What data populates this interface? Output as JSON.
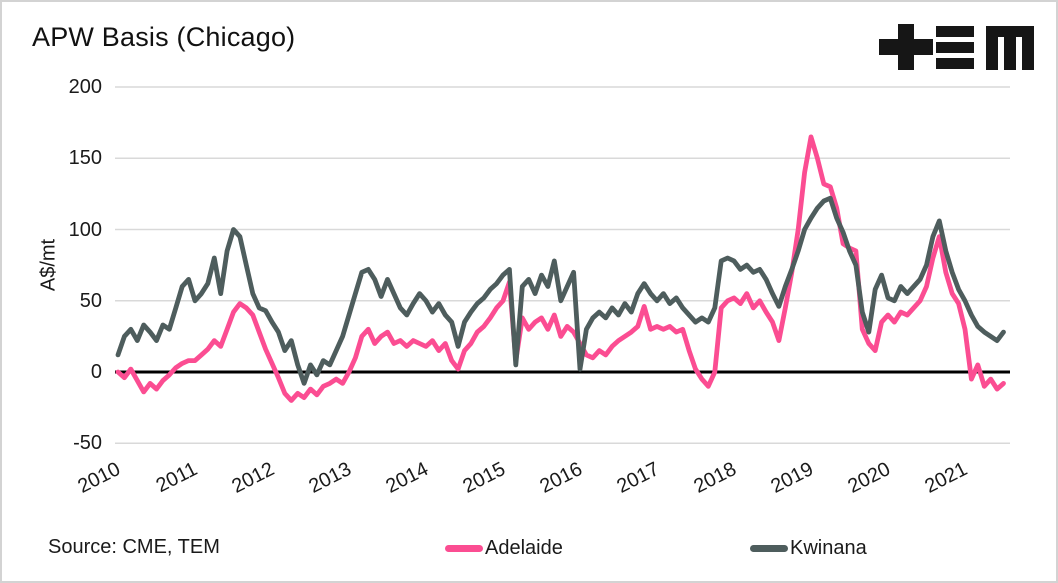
{
  "header": {
    "title": "APW Basis (Chicago)",
    "logo_name": "TEM"
  },
  "footer": {
    "source": "Source: CME, TEM"
  },
  "colors": {
    "adelaide": "#fb4d92",
    "kwinana": "#4e5d5d",
    "gridline": "#d9d9d9",
    "zero_line": "#000000",
    "text": "#1a1a1a",
    "border": "#d3d3d3"
  },
  "chart_data": {
    "type": "line",
    "title": "APW Basis (Chicago)",
    "xlabel": "",
    "ylabel": "A$/mt",
    "ylim": [
      -50,
      200
    ],
    "yticks": [
      200,
      150,
      100,
      50,
      0,
      -50
    ],
    "xticks": [
      2010,
      2011,
      2012,
      2013,
      2014,
      2015,
      2016,
      2017,
      2018,
      2019,
      2020,
      2021
    ],
    "grid": true,
    "legend_position": "bottom",
    "x_start": "2010-01",
    "x_step": "monthly",
    "series": [
      {
        "name": "Adelaide",
        "color": "#fb4d92",
        "values": [
          0,
          -4,
          2,
          -6,
          -14,
          -8,
          -12,
          -6,
          -2,
          3,
          6,
          8,
          8,
          12,
          16,
          22,
          18,
          30,
          42,
          48,
          45,
          40,
          28,
          16,
          6,
          -4,
          -15,
          -20,
          -15,
          -18,
          -12,
          -16,
          -10,
          -8,
          -5,
          -8,
          0,
          10,
          25,
          30,
          20,
          25,
          28,
          20,
          22,
          18,
          22,
          20,
          18,
          22,
          15,
          20,
          8,
          2,
          15,
          20,
          28,
          32,
          38,
          45,
          50,
          63,
          8,
          38,
          30,
          35,
          38,
          30,
          40,
          25,
          32,
          28,
          20,
          12,
          10,
          15,
          12,
          18,
          22,
          25,
          28,
          32,
          46,
          30,
          32,
          30,
          32,
          28,
          30,
          15,
          2,
          -5,
          -10,
          0,
          45,
          50,
          52,
          48,
          55,
          45,
          50,
          42,
          35,
          22,
          45,
          70,
          100,
          140,
          165,
          150,
          132,
          130,
          115,
          90,
          87,
          85,
          30,
          20,
          15,
          35,
          40,
          35,
          42,
          40,
          45,
          50,
          60,
          80,
          95,
          70,
          55,
          48,
          30,
          -5,
          5,
          -10,
          -5,
          -12,
          -8
        ]
      },
      {
        "name": "Kwinana",
        "color": "#4e5d5d",
        "values": [
          12,
          25,
          30,
          22,
          33,
          28,
          22,
          33,
          30,
          45,
          60,
          65,
          50,
          55,
          62,
          80,
          55,
          85,
          100,
          95,
          75,
          55,
          45,
          43,
          35,
          28,
          15,
          22,
          5,
          -8,
          5,
          -2,
          8,
          5,
          15,
          25,
          40,
          55,
          70,
          72,
          65,
          53,
          65,
          55,
          45,
          40,
          48,
          55,
          50,
          42,
          48,
          40,
          35,
          18,
          35,
          42,
          48,
          52,
          58,
          62,
          68,
          72,
          5,
          60,
          65,
          55,
          68,
          60,
          78,
          50,
          60,
          70,
          2,
          30,
          38,
          42,
          38,
          45,
          40,
          48,
          42,
          55,
          62,
          55,
          50,
          55,
          48,
          52,
          45,
          40,
          35,
          38,
          35,
          45,
          78,
          80,
          78,
          72,
          75,
          70,
          72,
          65,
          55,
          46,
          60,
          72,
          85,
          100,
          108,
          115,
          120,
          122,
          108,
          98,
          85,
          75,
          42,
          28,
          58,
          68,
          52,
          50,
          60,
          55,
          60,
          65,
          75,
          95,
          106,
          85,
          70,
          58,
          50,
          40,
          32,
          28,
          25,
          22,
          28
        ]
      }
    ],
    "source": "Source: CME, TEM"
  }
}
